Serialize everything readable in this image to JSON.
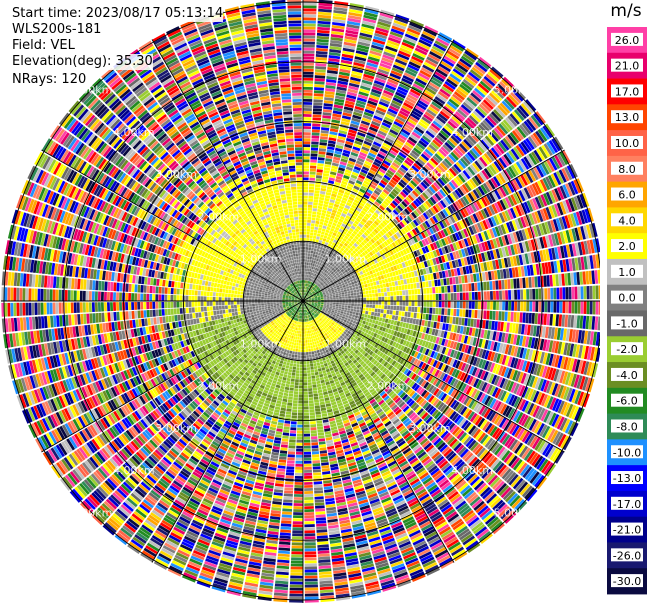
{
  "header": {
    "start_time": "Start time: 2023/08/17 05:13:14",
    "instrument": "WLS200s-181",
    "field": "Field: VEL",
    "elevation": "Elevation(deg): 35.30",
    "nrays": "NRays: 120"
  },
  "chart_data": {
    "type": "heatmap",
    "projection": "polar-ppi",
    "field": "VEL",
    "units": "m/s",
    "n_rays": 120,
    "range_ring_labels": [
      "1.00km",
      "2.00km",
      "3.00km",
      "4.00km",
      "5.00km"
    ],
    "range_rings_km": [
      1,
      2,
      3,
      4,
      5
    ],
    "max_range_km": 5.05,
    "velocity_regions": [
      {
        "range_km": [
          0.0,
          0.35
        ],
        "value_approx": -5.0,
        "note": "green core"
      },
      {
        "range_km": [
          0.35,
          1.0
        ],
        "value_approx": 0.5,
        "note": "grey near-zero ring, yellow positive in south"
      },
      {
        "range_km": [
          1.0,
          2.0
        ],
        "value_approx": 2.5,
        "note": "yellow positive north, olive negative south"
      },
      {
        "range_km": [
          2.0,
          5.05
        ],
        "value_approx": null,
        "note": "noise beyond max valid range"
      }
    ],
    "colorbar": {
      "title": "m/s",
      "range": [
        -30.0,
        30.0
      ],
      "bins": [
        {
          "label": "26.0",
          "color": "#ff3fa6"
        },
        {
          "label": "21.0",
          "color": "#e8006c"
        },
        {
          "label": "17.0",
          "color": "#ff0000"
        },
        {
          "label": "13.0",
          "color": "#ff4500"
        },
        {
          "label": "10.0",
          "color": "#ff6347"
        },
        {
          "label": "8.0",
          "color": "#ff8060"
        },
        {
          "label": "6.0",
          "color": "#ffa500"
        },
        {
          "label": "4.0",
          "color": "#ffd700"
        },
        {
          "label": "2.0",
          "color": "#ffff00"
        },
        {
          "label": "1.0",
          "color": "#c0c0c0"
        },
        {
          "label": "0.0",
          "color": "#808080"
        },
        {
          "label": "-1.0",
          "color": "#696969"
        },
        {
          "label": "-2.0",
          "color": "#9acd32"
        },
        {
          "label": "-4.0",
          "color": "#6b8e23"
        },
        {
          "label": "-6.0",
          "color": "#228b22"
        },
        {
          "label": "-8.0",
          "color": "#2e8b57"
        },
        {
          "label": "-10.0",
          "color": "#1e90ff"
        },
        {
          "label": "-13.0",
          "color": "#0000ff"
        },
        {
          "label": "-17.0",
          "color": "#0000cd"
        },
        {
          "label": "-21.0",
          "color": "#00008b"
        },
        {
          "label": "-26.0",
          "color": "#191970"
        },
        {
          "label": "-30.0",
          "color": "#0a0a40"
        }
      ]
    }
  }
}
